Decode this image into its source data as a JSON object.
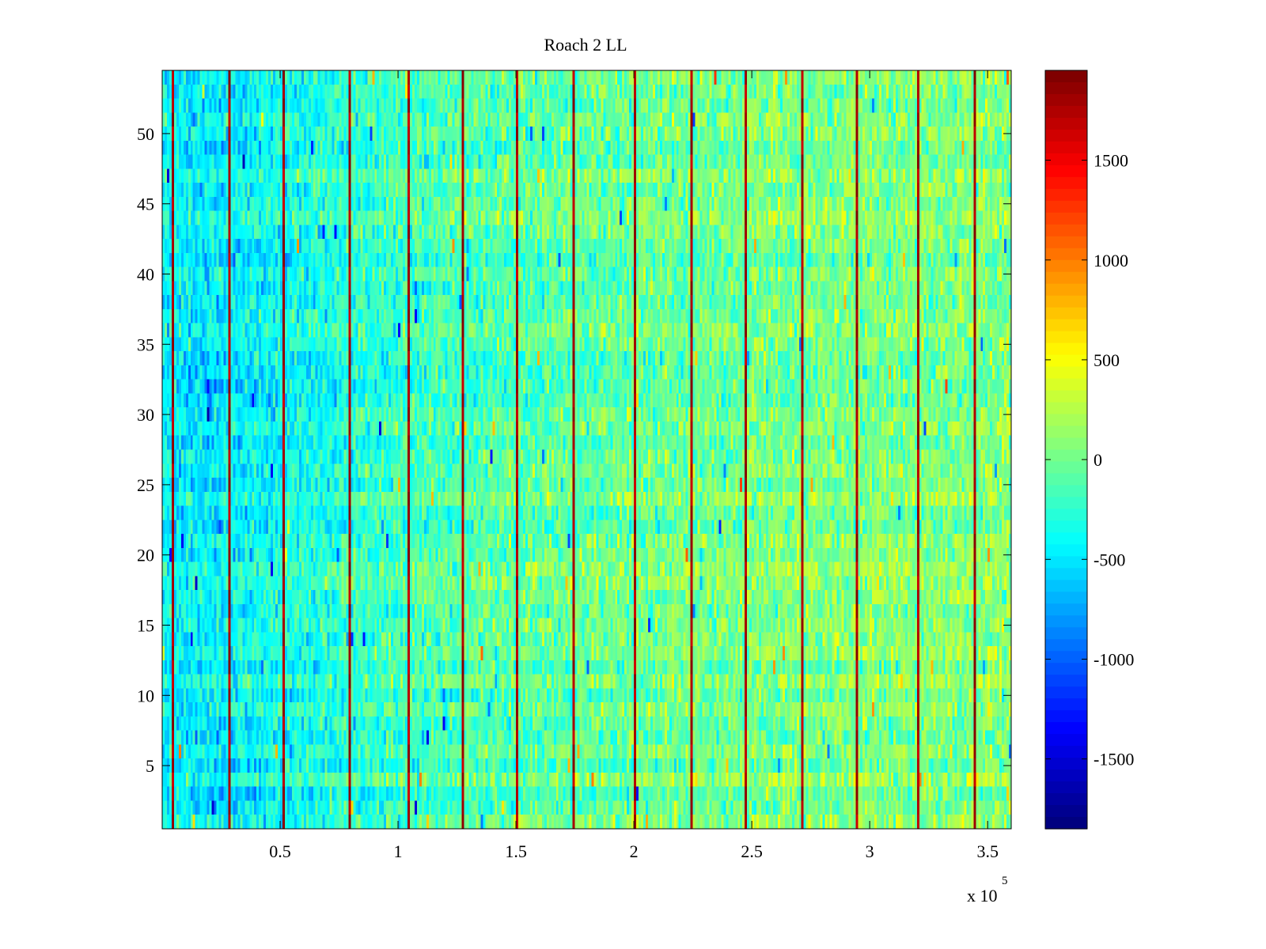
{
  "chart_data": {
    "type": "heatmap",
    "title": "Roach 2 LL",
    "xlabel": "",
    "ylabel": "",
    "x_multiplier_label": "x 10",
    "x_multiplier_exponent": "5",
    "xlim": [
      0,
      360000
    ],
    "ylim": [
      0.5,
      54.5
    ],
    "n_rows": 54,
    "x_ticks": [
      {
        "value": 50000,
        "label": "0.5"
      },
      {
        "value": 100000,
        "label": "1"
      },
      {
        "value": 150000,
        "label": "1.5"
      },
      {
        "value": 200000,
        "label": "2"
      },
      {
        "value": 250000,
        "label": "2.5"
      },
      {
        "value": 300000,
        "label": "3"
      },
      {
        "value": 350000,
        "label": "3.5"
      }
    ],
    "y_ticks": [
      {
        "value": 5,
        "label": "5"
      },
      {
        "value": 10,
        "label": "10"
      },
      {
        "value": 15,
        "label": "15"
      },
      {
        "value": 20,
        "label": "20"
      },
      {
        "value": 25,
        "label": "25"
      },
      {
        "value": 30,
        "label": "30"
      },
      {
        "value": 35,
        "label": "35"
      },
      {
        "value": 40,
        "label": "40"
      },
      {
        "value": 45,
        "label": "45"
      },
      {
        "value": 50,
        "label": "50"
      }
    ],
    "colorbar": {
      "colormap": "jet",
      "range": [
        -1850,
        1950
      ],
      "ticks": [
        {
          "value": 1500,
          "label": "1500"
        },
        {
          "value": 1000,
          "label": "1000"
        },
        {
          "value": 500,
          "label": "500"
        },
        {
          "value": 0,
          "label": "0"
        },
        {
          "value": -500,
          "label": "-500"
        },
        {
          "value": -1000,
          "label": "-1000"
        },
        {
          "value": -1500,
          "label": "-1500"
        }
      ]
    },
    "background_trend": {
      "description_values_x": [
        0,
        20000,
        50000,
        100000,
        150000,
        200000,
        250000,
        300000,
        360000
      ],
      "mean_values": [
        -420,
        -500,
        -380,
        -200,
        -90,
        -40,
        20,
        40,
        60
      ]
    },
    "high_value_columns_x": [
      4000,
      28000,
      51000,
      79000,
      104000,
      127000,
      150000,
      174000,
      200000,
      224000,
      247000,
      271000,
      294000,
      320000,
      344000
    ],
    "high_value_column_value": 1950
  }
}
